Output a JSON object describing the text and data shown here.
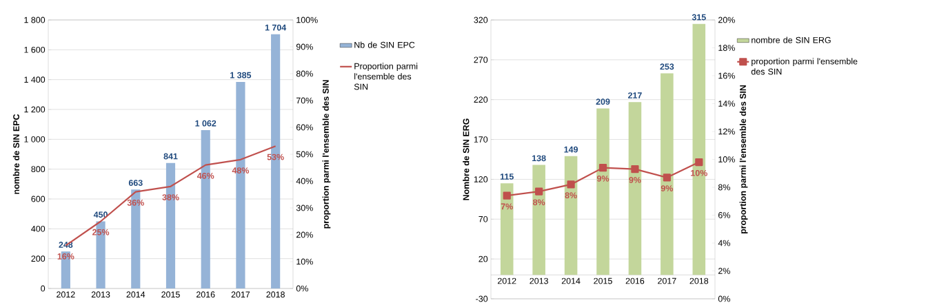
{
  "chart_data": [
    {
      "type": "bar",
      "categories": [
        "2012",
        "2013",
        "2014",
        "2015",
        "2016",
        "2017",
        "2018"
      ],
      "ylabel": "nombre de SIN EPC",
      "y2label": "proportion parmi l'ensemble des SIN",
      "series": [
        {
          "name": "Nb de SIN EPC",
          "color": "#95b3d7",
          "values": [
            248,
            450,
            663,
            841,
            1062,
            1385,
            1704
          ],
          "value_labels": [
            "248",
            "450",
            "663",
            "841",
            "1 062",
            "1 385",
            "1 704"
          ]
        },
        {
          "name": "Proportion parmi l'ensemble des SIN",
          "type": "line",
          "axis": "y2",
          "color": "#c0504d",
          "values": [
            16,
            25,
            36,
            38,
            46,
            48,
            53
          ],
          "value_labels": [
            "16%",
            "25%",
            "36%",
            "38%",
            "46%",
            "48%",
            "53%"
          ]
        }
      ],
      "ylim": [
        0,
        1800
      ],
      "yticks": [
        0,
        200,
        400,
        600,
        800,
        {
          "value": 1000,
          "label": "1 000"
        },
        {
          "value": 1200,
          "label": "1 200"
        },
        {
          "value": 1400,
          "label": "1 400"
        },
        {
          "value": 1600,
          "label": "1 600"
        },
        {
          "value": 1800,
          "label": "1 800"
        }
      ],
      "y2lim": [
        0,
        100
      ],
      "y2ticks": [
        {
          "value": 0,
          "label": "0%"
        },
        {
          "value": 10,
          "label": "10%"
        },
        {
          "value": 20,
          "label": "20%"
        },
        {
          "value": 30,
          "label": "30%"
        },
        {
          "value": 40,
          "label": "40%"
        },
        {
          "value": 50,
          "label": "50%"
        },
        {
          "value": 60,
          "label": "60%"
        },
        {
          "value": 70,
          "label": "70%"
        },
        {
          "value": 80,
          "label": "80%"
        },
        {
          "value": 90,
          "label": "90%"
        },
        {
          "value": 100,
          "label": "100%"
        }
      ],
      "grid": "y",
      "legend": "right"
    },
    {
      "type": "bar",
      "categories": [
        "2012",
        "2013",
        "2014",
        "2015",
        "2016",
        "2017",
        "2018"
      ],
      "ylabel": "Nombre de SIN ERG",
      "y2label": "proportion parmi l'ensemble des SIN",
      "series": [
        {
          "name": "nombre de SIN ERG",
          "color": "#c3d69b",
          "values": [
            115,
            138,
            149,
            209,
            217,
            253,
            315
          ],
          "value_labels": [
            "115",
            "138",
            "149",
            "209",
            "217",
            "253",
            "315"
          ]
        },
        {
          "name": "proportion parmi l'ensemble des SIN",
          "type": "line",
          "axis": "y2",
          "color": "#c0504d",
          "marker": "square",
          "values": [
            7.4,
            7.7,
            8.2,
            9.4,
            9.3,
            8.7,
            9.8
          ],
          "value_labels": [
            "7%",
            "8%",
            "8%",
            "9%",
            "9%",
            "9%",
            "10%"
          ]
        }
      ],
      "ylim": [
        -30,
        320
      ],
      "yticks": [
        -30,
        20,
        70,
        120,
        170,
        220,
        270,
        320
      ],
      "y2lim": [
        0,
        20
      ],
      "y2ticks": [
        {
          "value": 0,
          "label": "0%"
        },
        {
          "value": 2,
          "label": "2%"
        },
        {
          "value": 4,
          "label": "4%"
        },
        {
          "value": 6,
          "label": "6%"
        },
        {
          "value": 8,
          "label": "8%"
        },
        {
          "value": 10,
          "label": "10%"
        },
        {
          "value": 12,
          "label": "12%"
        },
        {
          "value": 14,
          "label": "14%"
        },
        {
          "value": 16,
          "label": "16%"
        },
        {
          "value": 18,
          "label": "18%"
        },
        {
          "value": 20,
          "label": "20%"
        }
      ],
      "grid": "y",
      "legend": "right"
    }
  ]
}
